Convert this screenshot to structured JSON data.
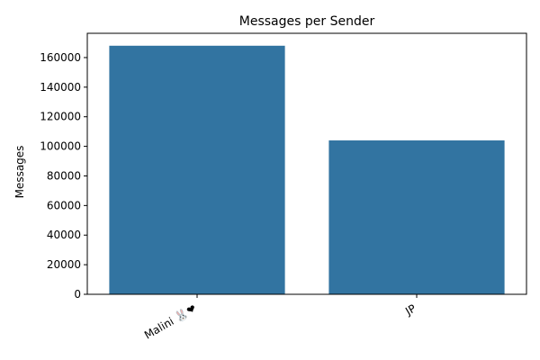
{
  "chart_data": {
    "type": "bar",
    "title": "Messages per Sender",
    "xlabel": "",
    "ylabel": "Messages",
    "categories": [
      "Malini 🐰❤",
      "JP"
    ],
    "values": [
      168000,
      104000
    ],
    "ylim": [
      0,
      176400
    ],
    "yticks": [
      0,
      20000,
      40000,
      60000,
      80000,
      100000,
      120000,
      140000,
      160000
    ],
    "grid": false,
    "bar_color": "#3274a1"
  }
}
